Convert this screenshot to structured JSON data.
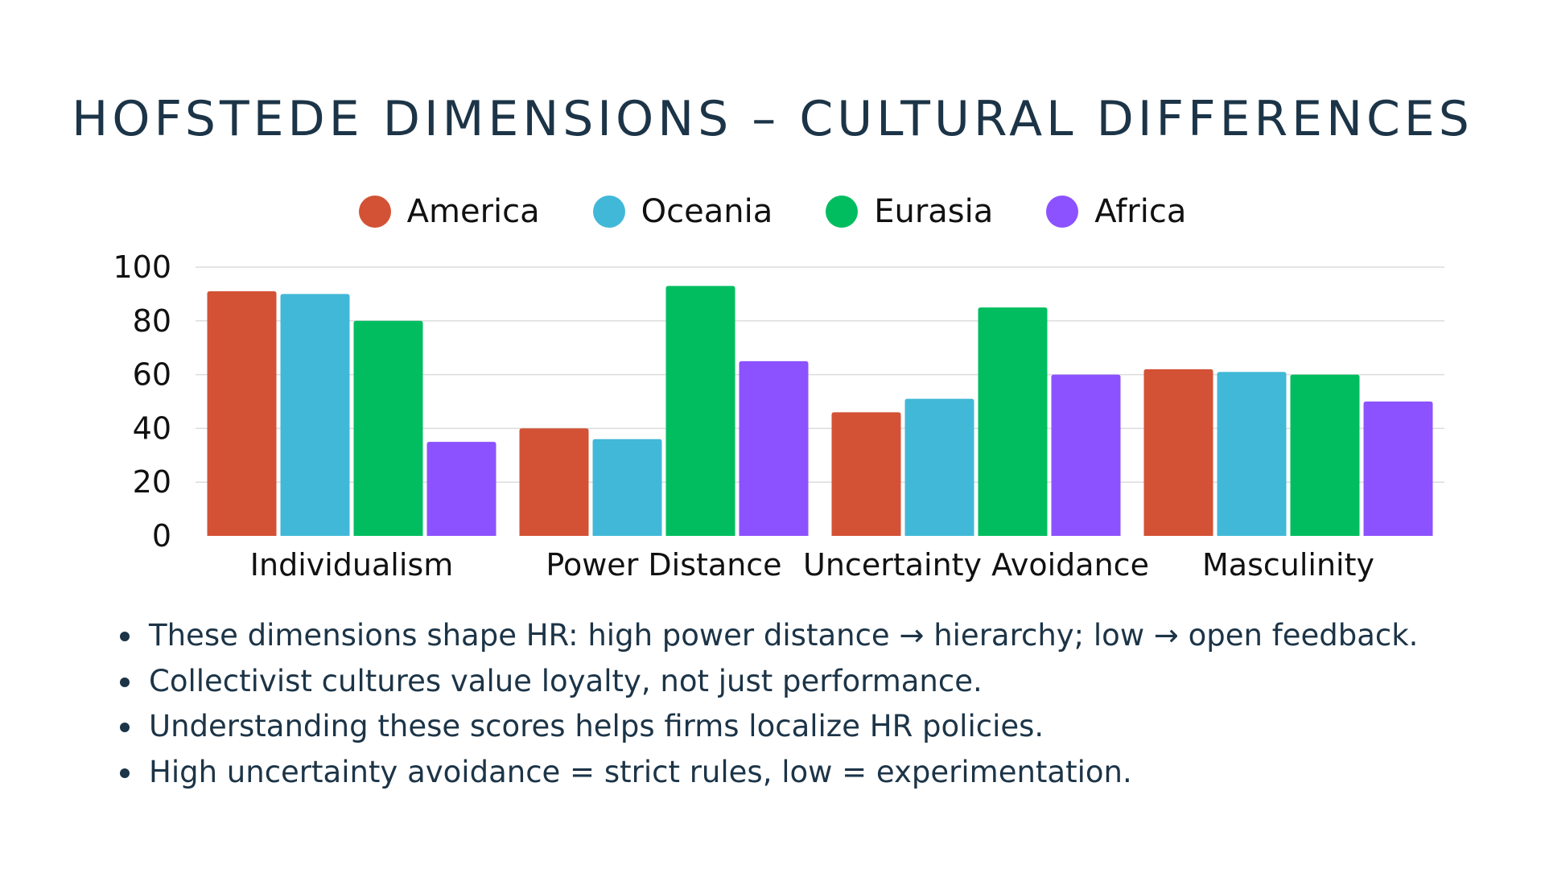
{
  "title": "HOFSTEDE DIMENSIONS – CULTURAL DIFFERENCES",
  "chart_data": {
    "type": "bar",
    "categories": [
      "Individualism",
      "Power Distance",
      "Uncertainty Avoidance",
      "Masculinity"
    ],
    "series": [
      {
        "name": "America",
        "color": "#d35235",
        "values": [
          91,
          40,
          46,
          62
        ]
      },
      {
        "name": "Oceania",
        "color": "#42b8d8",
        "values": [
          90,
          36,
          51,
          61
        ]
      },
      {
        "name": "Eurasia",
        "color": "#01bd5f",
        "values": [
          80,
          93,
          85,
          60
        ]
      },
      {
        "name": "Africa",
        "color": "#8c52ff",
        "values": [
          35,
          65,
          60,
          50
        ]
      }
    ],
    "ylim": [
      0,
      100
    ],
    "yticks": [
      0,
      20,
      40,
      60,
      80,
      100
    ],
    "grid": true,
    "legend": "top-center",
    "xlabel": "",
    "ylabel": ""
  },
  "bullets": [
    "These dimensions shape HR: high power distance → hierarchy; low → open feedback.",
    "Collectivist cultures value loyalty, not just performance.",
    "Understanding these scores helps firms localize HR policies.",
    "High uncertainty avoidance = strict rules, low = experimentation."
  ]
}
